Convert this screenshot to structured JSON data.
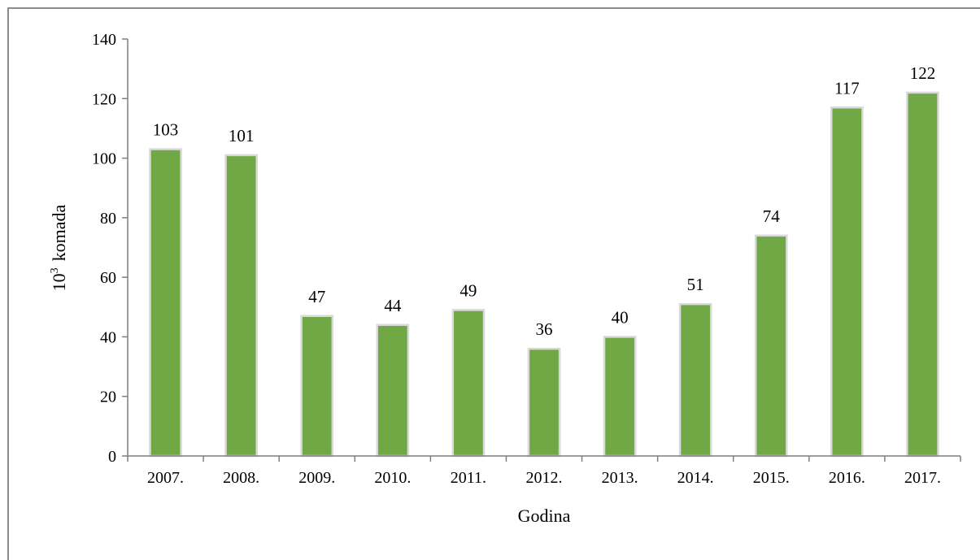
{
  "chart_data": {
    "type": "bar",
    "categories": [
      "2007.",
      "2008.",
      "2009.",
      "2010.",
      "2011.",
      "2012.",
      "2013.",
      "2014.",
      "2015.",
      "2016.",
      "2017."
    ],
    "values": [
      103,
      101,
      47,
      44,
      49,
      36,
      40,
      51,
      74,
      117,
      122
    ],
    "data_labels": [
      "103",
      "101",
      "47",
      "44",
      "49",
      "36",
      "40",
      "51",
      "74",
      "117",
      "122"
    ],
    "title": "",
    "xlabel": "Godina",
    "ylabel_base": "10",
    "ylabel_exponent": "3",
    "ylabel_rest": "komada",
    "ylim": [
      0,
      140
    ],
    "yticks": [
      0,
      20,
      40,
      60,
      80,
      100,
      120,
      140
    ],
    "ytick_labels": [
      "0",
      "20",
      "40",
      "60",
      "80",
      "100",
      "120",
      "140"
    ],
    "grid": false,
    "legend": "none",
    "colors": {
      "bar": "#70a845",
      "bar_outline": "#d9d9d9",
      "axis": "#7f7f7f",
      "frame": "#8c8c8c"
    }
  }
}
